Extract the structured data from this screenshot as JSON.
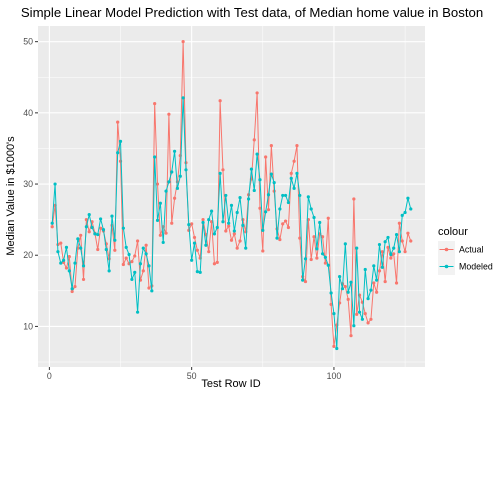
{
  "chart_data": {
    "type": "line",
    "title": "Simple Linear Model Prediction with Test data, of Median home value in Boston",
    "xlabel": "Test Row ID",
    "ylabel": "Median Value in $1000's",
    "xlim": [
      -4,
      132
    ],
    "ylim": [
      4.3,
      52.2
    ],
    "x_ticks": [
      0,
      50,
      100
    ],
    "y_ticks": [
      10,
      20,
      30,
      40,
      50
    ],
    "grid": true,
    "legend": {
      "title": "colour",
      "position": "right"
    },
    "colors": {
      "Actual": "#F8766D",
      "Modeled": "#00BFC4",
      "panel": "#EBEBEB",
      "grid": "#FFFFFF"
    },
    "x": [
      1,
      2,
      3,
      4,
      5,
      6,
      7,
      8,
      9,
      10,
      11,
      12,
      13,
      14,
      15,
      16,
      17,
      18,
      19,
      20,
      21,
      22,
      23,
      24,
      25,
      26,
      27,
      28,
      29,
      30,
      31,
      32,
      33,
      34,
      35,
      36,
      37,
      38,
      39,
      40,
      41,
      42,
      43,
      44,
      45,
      46,
      47,
      48,
      49,
      50,
      51,
      52,
      53,
      54,
      55,
      56,
      57,
      58,
      59,
      60,
      61,
      62,
      63,
      64,
      65,
      66,
      67,
      68,
      69,
      70,
      71,
      72,
      73,
      74,
      75,
      76,
      77,
      78,
      79,
      80,
      81,
      82,
      83,
      84,
      85,
      86,
      87,
      88,
      89,
      90,
      91,
      92,
      93,
      94,
      95,
      96,
      97,
      98,
      99,
      100,
      101,
      102,
      103,
      104,
      105,
      106,
      107,
      108,
      109,
      110,
      111,
      112,
      113,
      114,
      115,
      116,
      117,
      118,
      119,
      120,
      121,
      122,
      123,
      124,
      125,
      126,
      127
    ],
    "series": [
      {
        "name": "Actual",
        "values": [
          24.0,
          27.0,
          21.5,
          21.7,
          19.0,
          18.2,
          19.8,
          14.9,
          15.6,
          21.0,
          22.8,
          16.6,
          25.0,
          23.3,
          24.7,
          23.1,
          20.8,
          23.8,
          23.4,
          21.6,
          19.5,
          24.2,
          20.7,
          38.7,
          33.2,
          18.7,
          19.6,
          18.8,
          19.1,
          19.9,
          22.0,
          16.5,
          17.8,
          21.4,
          15.4,
          15.7,
          41.3,
          30.0,
          22.8,
          24.0,
          23.1,
          39.8,
          24.5,
          28.0,
          30.3,
          34.0,
          50.0,
          33.0,
          23.5,
          24.4,
          22.5,
          20.7,
          19.6,
          25.0,
          22.9,
          20.5,
          24.7,
          18.8,
          19.0,
          41.7,
          32.0,
          23.4,
          24.1,
          22.1,
          23.0,
          21.0,
          22.0,
          25.0,
          23.3,
          28.5,
          30.7,
          36.2,
          42.8,
          26.6,
          20.6,
          33.8,
          26.4,
          35.4,
          29.0,
          23.7,
          22.2,
          24.4,
          24.8,
          23.9,
          31.5,
          33.2,
          35.4,
          22.4,
          17.0,
          16.3,
          25.0,
          19.4,
          22.6,
          19.6,
          23.0,
          22.6,
          18.9,
          25.2,
          13.1,
          7.2,
          10.2,
          13.3,
          16.0,
          15.6,
          13.8,
          8.7,
          27.9,
          11.7,
          14.4,
          13.4,
          11.8,
          10.5,
          11.0,
          16.1,
          14.8,
          17.8,
          20.5,
          16.3,
          21.1,
          19.6,
          20.2,
          16.1,
          24.5,
          22.0,
          20.5,
          23.1,
          22.0
        ]
      },
      {
        "name": "Modeled",
        "values": [
          24.5,
          30.0,
          20.5,
          18.9,
          19.3,
          21.1,
          17.8,
          15.3,
          18.9,
          22.3,
          21.0,
          18.5,
          24.0,
          25.7,
          23.9,
          23.0,
          22.9,
          25.1,
          23.6,
          20.8,
          17.8,
          25.5,
          22.1,
          34.4,
          36.0,
          23.8,
          21.1,
          20.1,
          16.6,
          17.6,
          12.0,
          18.8,
          21.0,
          20.2,
          18.5,
          15.0,
          33.8,
          24.9,
          27.3,
          21.8,
          29.0,
          30.3,
          31.7,
          34.6,
          29.4,
          31.1,
          42.1,
          32.0,
          24.3,
          19.3,
          21.7,
          17.7,
          17.6,
          24.6,
          21.4,
          25.0,
          26.2,
          23.0,
          23.9,
          31.5,
          24.7,
          28.4,
          24.5,
          27.0,
          23.4,
          26.0,
          28.1,
          24.2,
          21.0,
          27.9,
          32.1,
          29.1,
          34.2,
          30.6,
          23.5,
          26.1,
          28.5,
          31.4,
          30.2,
          22.4,
          26.5,
          28.4,
          28.4,
          27.4,
          30.8,
          29.4,
          31.5,
          28.4,
          16.5,
          19.5,
          28.2,
          26.5,
          25.3,
          20.9,
          24.6,
          20.2,
          19.7,
          18.6,
          14.7,
          11.8,
          6.9,
          17.0,
          15.3,
          21.6,
          14.8,
          16.2,
          10.1,
          21.0,
          12.0,
          11.0,
          18.0,
          13.9,
          15.1,
          18.5,
          16.5,
          21.5,
          18.3,
          21.9,
          22.5,
          20.1,
          21.0,
          22.9,
          20.5,
          25.6,
          26.0,
          28.0,
          26.5
        ]
      }
    ]
  }
}
